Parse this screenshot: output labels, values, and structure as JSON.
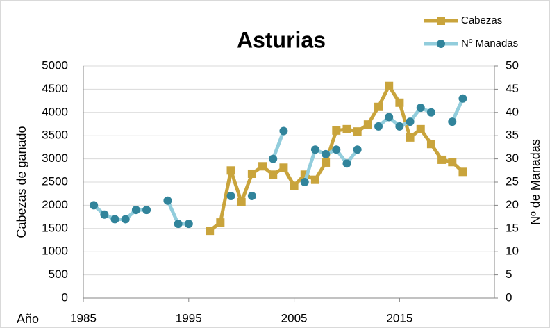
{
  "chart_data": {
    "type": "line",
    "title": "Asturias",
    "x_label": "Año",
    "y_label": "Cabezas de ganado",
    "y2_label": "Nº de Manadas",
    "x": [
      1986,
      1987,
      1988,
      1989,
      1990,
      1991,
      1992,
      1993,
      1994,
      1995,
      1996,
      1997,
      1998,
      1999,
      2000,
      2001,
      2002,
      2003,
      2004,
      2005,
      2006,
      2007,
      2008,
      2009,
      2010,
      2011,
      2012,
      2013,
      2014,
      2015,
      2016,
      2017,
      2018,
      2019,
      2020,
      2021
    ],
    "series": [
      {
        "name": "Cabezas",
        "color": "#c9a43c",
        "marker_color": "#c9a43c",
        "marker": "square",
        "values": [
          null,
          null,
          null,
          null,
          null,
          null,
          null,
          null,
          null,
          null,
          null,
          1450,
          1630,
          2750,
          2070,
          2680,
          2840,
          2660,
          2810,
          2420,
          2660,
          2550,
          2920,
          3610,
          3640,
          3590,
          3740,
          4120,
          4570,
          4210,
          3460,
          3640,
          3320,
          2980,
          2930,
          2720
        ]
      },
      {
        "name": "Nº Manadas",
        "color": "#92cddc",
        "marker_color": "#31849b",
        "marker": "circle",
        "axis": "y2",
        "values": [
          20,
          18,
          17,
          17,
          19,
          19,
          null,
          21,
          16,
          16,
          null,
          null,
          null,
          22,
          null,
          22,
          null,
          30,
          36,
          null,
          25,
          32,
          31,
          32,
          29,
          32,
          null,
          37,
          39,
          37,
          38,
          41,
          40,
          null,
          38,
          43
        ]
      }
    ],
    "xlim": [
      1985,
      2024
    ],
    "xticks": [
      1985,
      1995,
      2005,
      2015
    ],
    "ylim": [
      0,
      5000
    ],
    "yticks": [
      0,
      500,
      1000,
      1500,
      2000,
      2500,
      3000,
      3500,
      4000,
      4500,
      5000
    ],
    "y2lim": [
      0,
      50
    ],
    "y2ticks": [
      0,
      5,
      10,
      15,
      20,
      25,
      30,
      35,
      40,
      45,
      50
    ],
    "grid": true,
    "legend": "top-right"
  }
}
